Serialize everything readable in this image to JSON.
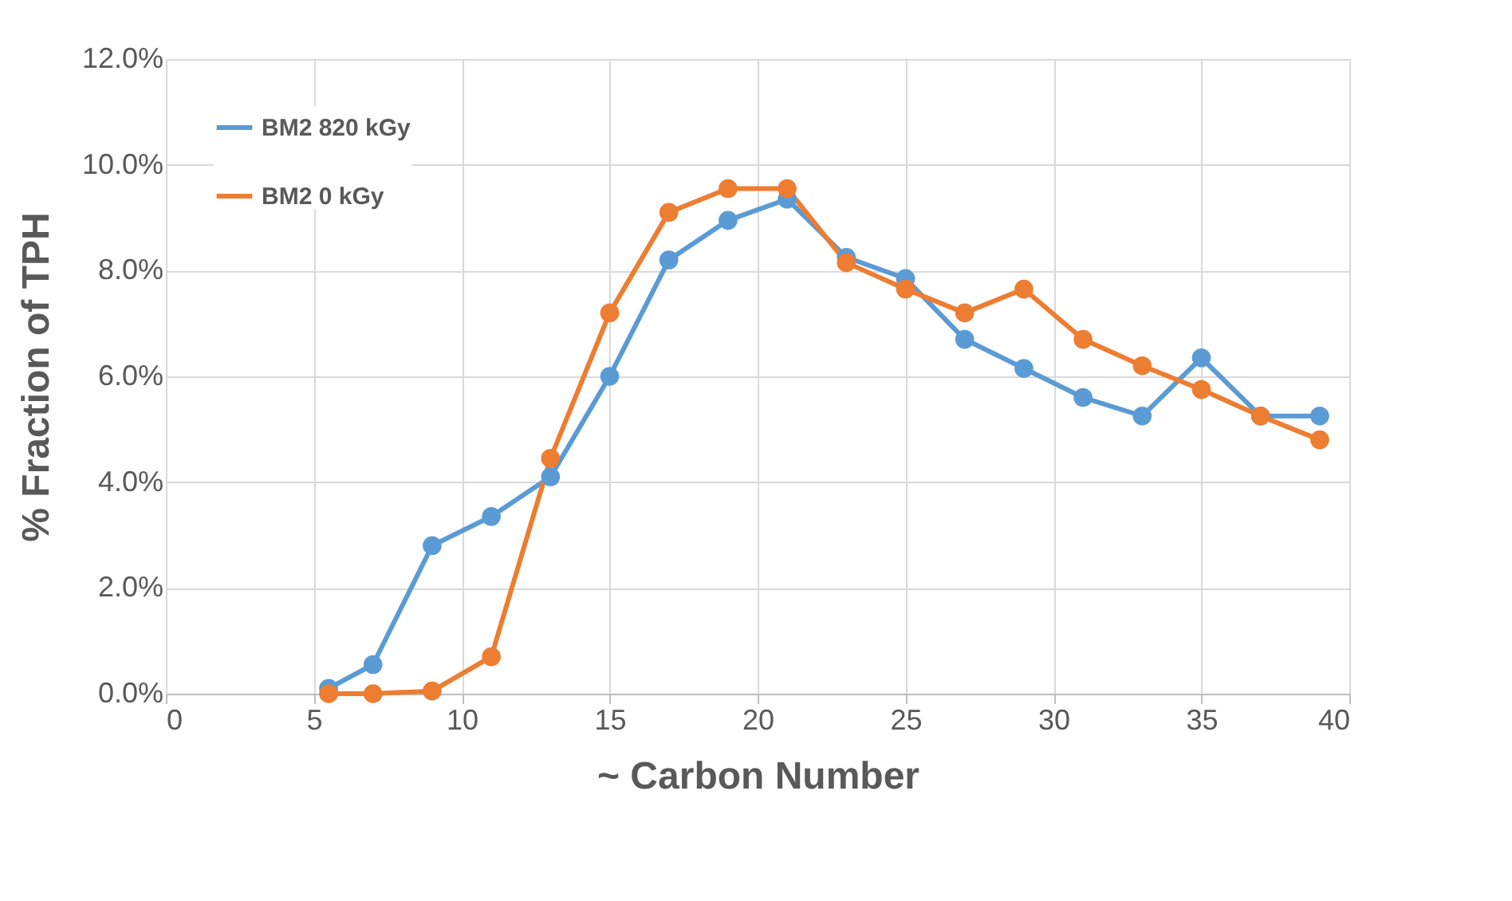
{
  "chart_data": {
    "type": "line",
    "xlabel": "~ Carbon Number",
    "ylabel": "% Fraction of TPH",
    "x": [
      5.5,
      7,
      9,
      11,
      13,
      15,
      17,
      19,
      21,
      23,
      25,
      27,
      29,
      31,
      33,
      35,
      37,
      39
    ],
    "series": [
      {
        "name": "BM2 820 kGy",
        "color": "#5b9bd5",
        "values": [
          0.1,
          0.55,
          2.8,
          3.35,
          4.1,
          6.0,
          8.2,
          8.95,
          9.35,
          8.25,
          7.85,
          6.7,
          6.15,
          5.6,
          5.25,
          6.35,
          5.25,
          5.25
        ]
      },
      {
        "name": "BM2 0 kGy",
        "color": "#ed7d31",
        "values": [
          0,
          0,
          0.05,
          0.7,
          4.45,
          7.2,
          9.1,
          9.55,
          9.55,
          8.15,
          7.65,
          7.2,
          7.65,
          6.7,
          6.2,
          5.75,
          5.25,
          4.8
        ]
      }
    ],
    "xlim": [
      0,
      40
    ],
    "xticks": [
      0,
      5,
      10,
      15,
      20,
      25,
      30,
      35,
      40
    ],
    "ylim": [
      0,
      12
    ],
    "yticks": [
      {
        "value": 0,
        "label": "0.0%"
      },
      {
        "value": 2,
        "label": "2.0%"
      },
      {
        "value": 4,
        "label": "4.0%"
      },
      {
        "value": 6,
        "label": "6.0%"
      },
      {
        "value": 8,
        "label": "8.0%"
      },
      {
        "value": 10,
        "label": "10.0%"
      },
      {
        "value": 12,
        "label": "12.0%"
      }
    ],
    "grid": true,
    "legend": "top left",
    "marker": "circle",
    "line_style": "solid"
  }
}
